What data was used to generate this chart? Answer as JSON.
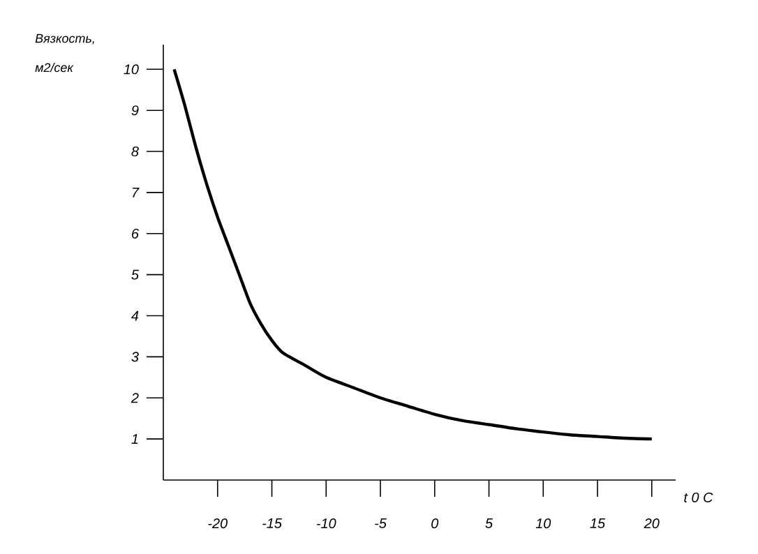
{
  "chart_data": {
    "type": "line",
    "xlabel": "t 0 C",
    "ylabel": "Вязкость, м2/сек",
    "x": [
      -24,
      -23,
      -22,
      -21,
      -20,
      -19,
      -18,
      -17,
      -16,
      -15,
      -14,
      -12,
      -10,
      -7.5,
      -5,
      -2.5,
      0,
      2.5,
      5,
      7.5,
      10,
      12.5,
      15,
      17.5,
      20
    ],
    "series": [
      {
        "color": "#000000",
        "values": [
          10,
          9.1,
          8.1,
          7.2,
          6.4,
          5.7,
          5.0,
          4.3,
          3.8,
          3.4,
          3.1,
          2.8,
          2.5,
          2.25,
          2.0,
          1.8,
          1.6,
          1.45,
          1.35,
          1.25,
          1.17,
          1.1,
          1.06,
          1.02,
          1.0
        ]
      }
    ],
    "xlim": [
      -25,
      22.2
    ],
    "ylim": [
      0,
      10.6
    ],
    "xticks": [
      -20,
      -15,
      -10,
      -5,
      0,
      5,
      10,
      15,
      20
    ],
    "yticks": [
      1,
      2,
      3,
      4,
      5,
      6,
      7,
      8,
      9,
      10
    ],
    "grid": false,
    "marker": "none",
    "line_style": "solid"
  }
}
